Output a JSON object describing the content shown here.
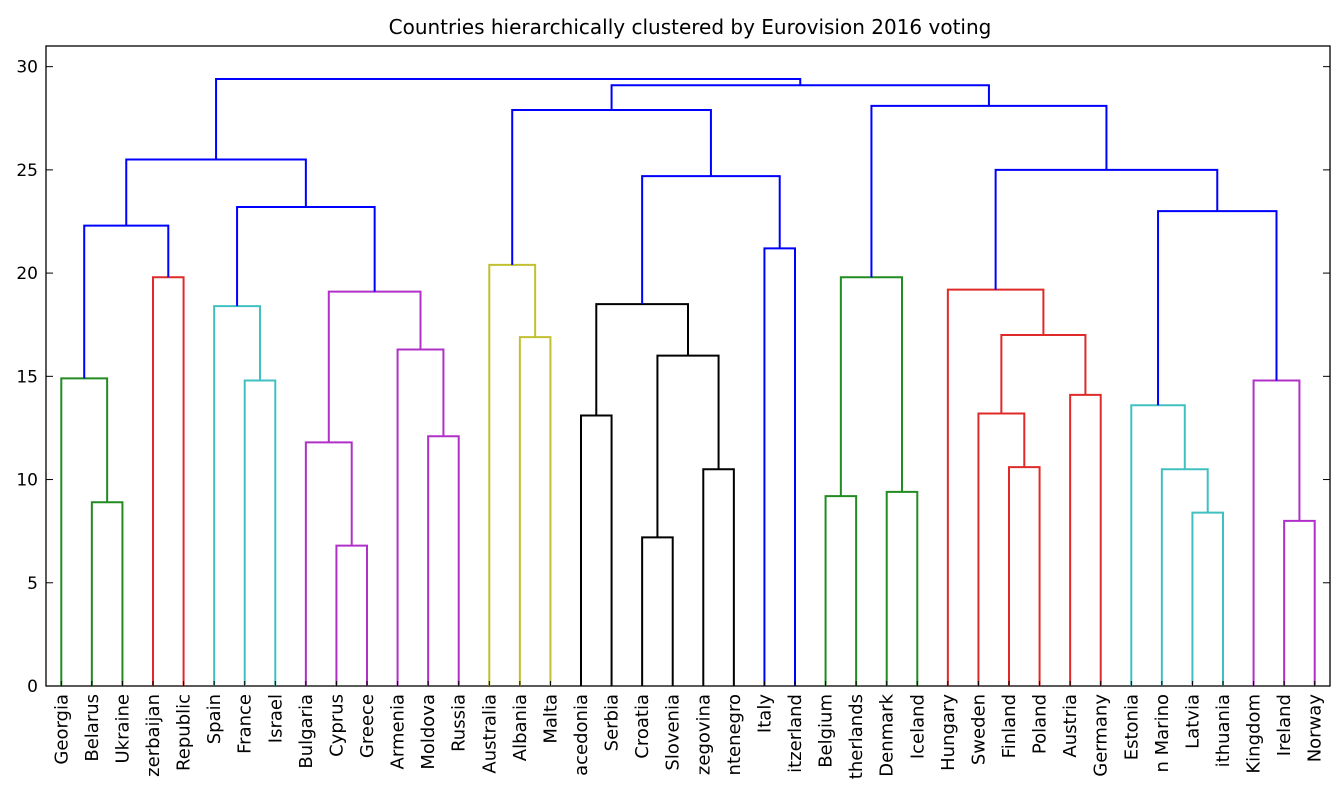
{
  "chart_data": {
    "type": "dendrogram",
    "title": "Countries hierarchically clustered by Eurovision 2016 voting",
    "xlabel": "",
    "ylabel": "",
    "ylim": [
      0,
      31
    ],
    "yticks": [
      0,
      5,
      10,
      15,
      20,
      25,
      30
    ],
    "grid": false,
    "leaves": [
      "Georgia",
      "Belarus",
      "Ukraine",
      "Azerbaijan",
      "Czech Republic",
      "Spain",
      "France",
      "Israel",
      "Bulgaria",
      "Cyprus",
      "Greece",
      "Armenia",
      "Moldova",
      "Russia",
      "Australia",
      "Albania",
      "Malta",
      "Macedonia",
      "Serbia",
      "Croatia",
      "Slovenia",
      "Bosnia & Herzegovina",
      "Montenegro",
      "Italy",
      "Switzerland",
      "Belgium",
      "The Netherlands",
      "Denmark",
      "Iceland",
      "Hungary",
      "Sweden",
      "Finland",
      "Poland",
      "Austria",
      "Germany",
      "Estonia",
      "San Marino",
      "Latvia",
      "Lithuania",
      "United Kingdom",
      "Ireland",
      "Norway"
    ],
    "leaf_labels_visible": [
      "Georgia",
      "Belarus",
      "Ukraine",
      "zerbaijan",
      "Republic",
      "Spain",
      "France",
      "Israel",
      "Bulgaria",
      "Cyprus",
      "Greece",
      "Armenia",
      "Moldova",
      "Russia",
      "Australia",
      "Albania",
      "Malta",
      "acedonia",
      "Serbia",
      "Croatia",
      "Slovenia",
      "zegovina",
      "ntenegro",
      "Italy",
      "itzerland",
      "Belgium",
      "therlands",
      "Denmark",
      "Iceland",
      "Hungary",
      "Sweden",
      "Finland",
      "Poland",
      "Austria",
      "Germany",
      "Estonia",
      "n Marino",
      "Latvia",
      "ithuania",
      "Kingdom",
      "Ireland",
      "Norway"
    ],
    "colors": {
      "green": "#228b22",
      "red": "#e02a2a",
      "cyan": "#40c0c0",
      "magenta": "#b030c8",
      "yellow": "#c0c030",
      "black": "#000000",
      "blue": "#0000ff"
    },
    "merges": [
      {
        "a": 1,
        "b": 2,
        "height": 8.9,
        "color": "green"
      },
      {
        "a": 0,
        "b": 42,
        "height": 14.9,
        "color": "green"
      },
      {
        "a": 3,
        "b": 4,
        "height": 19.8,
        "color": "red"
      },
      {
        "a": 43,
        "b": 44,
        "height": 22.3,
        "color": "blue"
      },
      {
        "a": 6,
        "b": 7,
        "height": 14.8,
        "color": "cyan"
      },
      {
        "a": 5,
        "b": 46,
        "height": 18.4,
        "color": "cyan"
      },
      {
        "a": 9,
        "b": 10,
        "height": 6.8,
        "color": "magenta"
      },
      {
        "a": 8,
        "b": 48,
        "height": 11.8,
        "color": "magenta"
      },
      {
        "a": 12,
        "b": 13,
        "height": 12.1,
        "color": "magenta"
      },
      {
        "a": 11,
        "b": 50,
        "height": 16.3,
        "color": "magenta"
      },
      {
        "a": 49,
        "b": 51,
        "height": 19.1,
        "color": "magenta"
      },
      {
        "a": 47,
        "b": 52,
        "height": 23.2,
        "color": "blue"
      },
      {
        "a": 45,
        "b": 53,
        "height": 25.5,
        "color": "blue"
      },
      {
        "a": 15,
        "b": 16,
        "height": 16.9,
        "color": "yellow"
      },
      {
        "a": 14,
        "b": 55,
        "height": 20.4,
        "color": "yellow"
      },
      {
        "a": 17,
        "b": 18,
        "height": 13.1,
        "color": "black"
      },
      {
        "a": 19,
        "b": 20,
        "height": 7.2,
        "color": "black"
      },
      {
        "a": 21,
        "b": 22,
        "height": 10.5,
        "color": "black"
      },
      {
        "a": 58,
        "b": 59,
        "height": 16.0,
        "color": "black"
      },
      {
        "a": 57,
        "b": 60,
        "height": 18.5,
        "color": "black"
      },
      {
        "a": 23,
        "b": 24,
        "height": 21.2,
        "color": "blue"
      },
      {
        "a": 61,
        "b": 62,
        "height": 24.7,
        "color": "blue"
      },
      {
        "a": 56,
        "b": 63,
        "height": 27.9,
        "color": "blue"
      },
      {
        "a": 25,
        "b": 26,
        "height": 9.2,
        "color": "green"
      },
      {
        "a": 27,
        "b": 28,
        "height": 9.4,
        "color": "green"
      },
      {
        "a": 65,
        "b": 66,
        "height": 19.8,
        "color": "green"
      },
      {
        "a": 31,
        "b": 32,
        "height": 10.6,
        "color": "red"
      },
      {
        "a": 30,
        "b": 68,
        "height": 13.2,
        "color": "red"
      },
      {
        "a": 33,
        "b": 34,
        "height": 14.1,
        "color": "red"
      },
      {
        "a": 69,
        "b": 70,
        "height": 17.0,
        "color": "red"
      },
      {
        "a": 29,
        "b": 71,
        "height": 19.2,
        "color": "red"
      },
      {
        "a": 37,
        "b": 38,
        "height": 8.4,
        "color": "cyan"
      },
      {
        "a": 36,
        "b": 73,
        "height": 10.5,
        "color": "cyan"
      },
      {
        "a": 35,
        "b": 74,
        "height": 13.6,
        "color": "cyan"
      },
      {
        "a": 40,
        "b": 41,
        "height": 8.0,
        "color": "magenta"
      },
      {
        "a": 39,
        "b": 76,
        "height": 14.8,
        "color": "magenta"
      },
      {
        "a": 75,
        "b": 77,
        "height": 23.0,
        "color": "blue"
      },
      {
        "a": 72,
        "b": 78,
        "height": 25.0,
        "color": "blue"
      },
      {
        "a": 67,
        "b": 79,
        "height": 28.1,
        "color": "blue"
      },
      {
        "a": 64,
        "b": 80,
        "height": 29.1,
        "color": "blue"
      },
      {
        "a": 54,
        "b": 81,
        "height": 29.4,
        "color": "blue"
      }
    ]
  }
}
